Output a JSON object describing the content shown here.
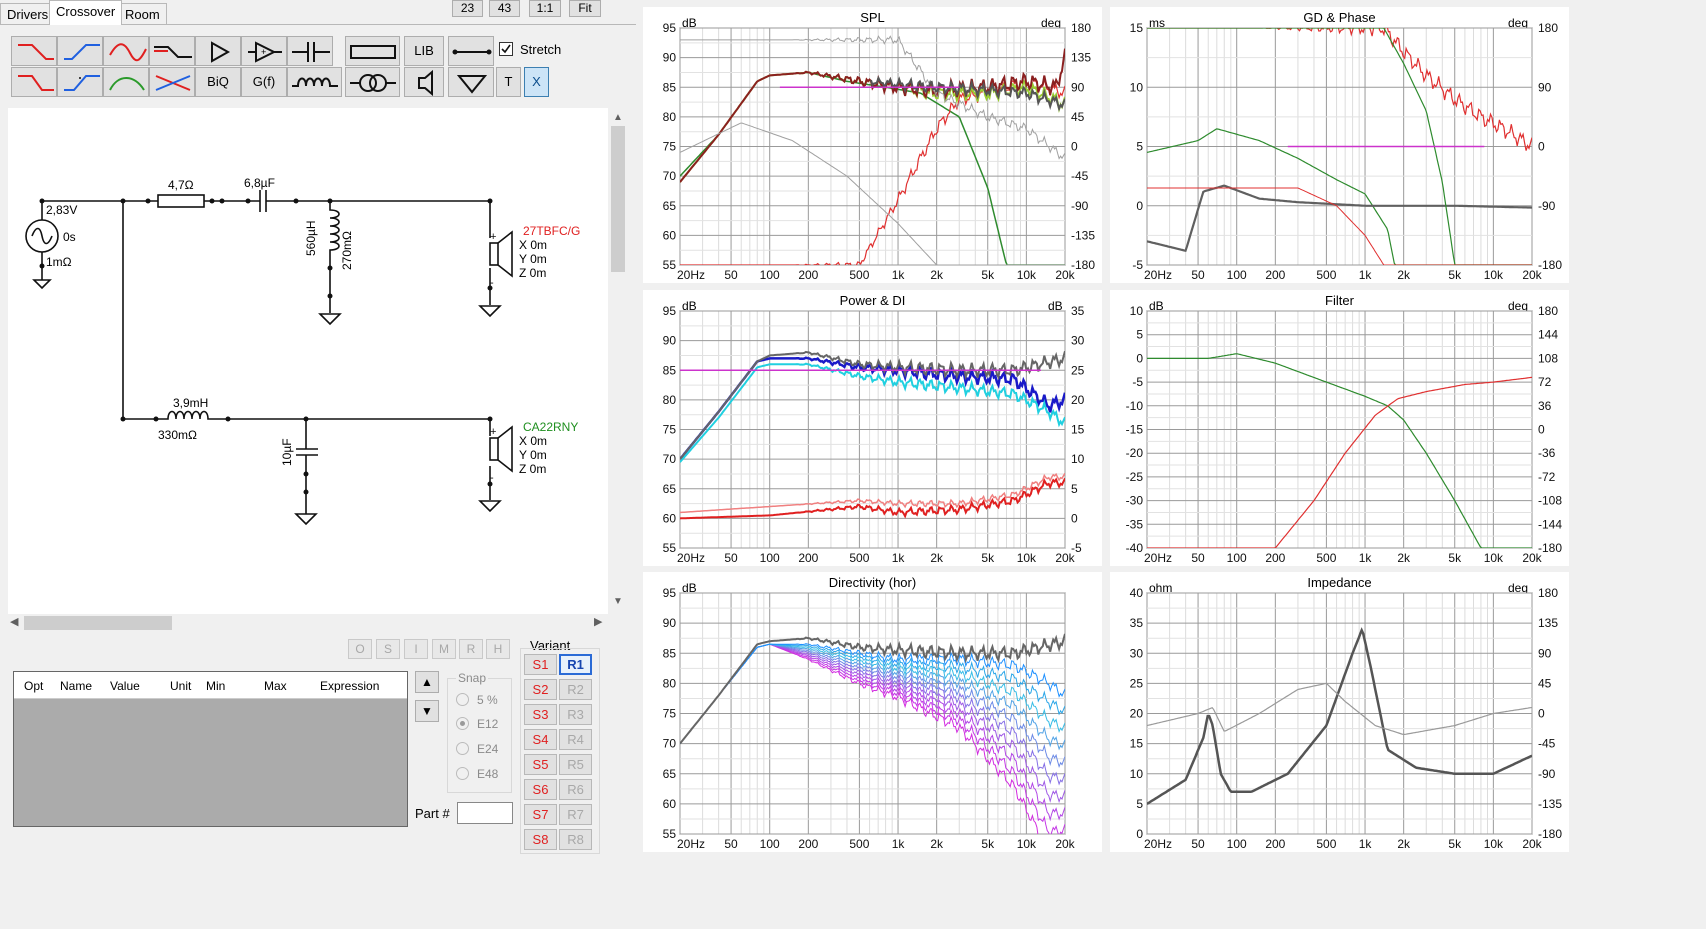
{
  "tabs": [
    "Drivers",
    "Crossover",
    "Room"
  ],
  "toolbar": {
    "b23": "23",
    "b43": "43",
    "b11": "1:1",
    "fit": "Fit"
  },
  "tools": {
    "lib": "LIB",
    "biq": "BiQ",
    "gf": "G(f)",
    "t": "T",
    "x": "X",
    "stretch": "Stretch"
  },
  "schematic": {
    "source_v": "2,83V",
    "source_t": "0s",
    "source_r": "1mΩ",
    "r1": "4,7Ω",
    "c1": "6,8µF",
    "l1": "560µH",
    "l1r": "270mΩ",
    "driver1": "27TBFC/G",
    "d1x": "X 0m",
    "d1y": "Y 0m",
    "d1z": "Z 0m",
    "l2": "3,9mH",
    "l2r": "330mΩ",
    "c2": "10µF",
    "driver2": "CA22RNY",
    "d2x": "X 0m",
    "d2y": "Y 0m",
    "d2z": "Z 0m"
  },
  "table": {
    "headers": [
      "Opt",
      "Name",
      "Value",
      "Unit",
      "Min",
      "Max",
      "Expression"
    ]
  },
  "optbtns": [
    "O",
    "S",
    "I",
    "M",
    "R",
    "H"
  ],
  "snap": {
    "label": "Snap",
    "options": [
      "5 %",
      "E12",
      "E24",
      "E48"
    ],
    "selected": "E12"
  },
  "part": {
    "label": "Part #"
  },
  "variant": {
    "label": "Variant",
    "s": [
      "S1",
      "S2",
      "S3",
      "S4",
      "S5",
      "S6",
      "S7",
      "S8"
    ],
    "r": [
      "R1",
      "R2",
      "R3",
      "R4",
      "R5",
      "R6",
      "R7",
      "R8"
    ]
  },
  "xticks": [
    "20Hz",
    "50",
    "100",
    "200",
    "500",
    "1k",
    "2k",
    "5k",
    "10k",
    "20k"
  ],
  "charts": {
    "spl": {
      "title": "SPL",
      "lunit": "dB",
      "runit": "deg",
      "left": [
        "95",
        "90",
        "85",
        "80",
        "75",
        "70",
        "65",
        "60",
        "55"
      ],
      "right": [
        "180",
        "135",
        "90",
        "45",
        "0",
        "-45",
        "-90",
        "-135",
        "-180"
      ]
    },
    "gd": {
      "title": "GD & Phase",
      "lunit": "ms",
      "runit": "deg",
      "left": [
        "15",
        "10",
        "5",
        "0",
        "-5"
      ],
      "right": [
        "180",
        "90",
        "0",
        "-90",
        "-180"
      ]
    },
    "power": {
      "title": "Power & DI",
      "lunit": "dB",
      "runit": "dB",
      "left": [
        "95",
        "90",
        "85",
        "80",
        "75",
        "70",
        "65",
        "60",
        "55"
      ],
      "right": [
        "35",
        "30",
        "25",
        "20",
        "15",
        "10",
        "5",
        "0",
        "-5"
      ]
    },
    "filter": {
      "title": "Filter",
      "lunit": "dB",
      "runit": "deg",
      "left": [
        "10",
        "5",
        "0",
        "-5",
        "-10",
        "-15",
        "-20",
        "-25",
        "-30",
        "-35",
        "-40"
      ],
      "right": [
        "180",
        "144",
        "108",
        "72",
        "36",
        "0",
        "-36",
        "-72",
        "-108",
        "-144",
        "-180"
      ]
    },
    "dir": {
      "title": "Directivity (hor)",
      "lunit": "dB",
      "runit": "",
      "left": [
        "95",
        "90",
        "85",
        "80",
        "75",
        "70",
        "65",
        "60",
        "55"
      ],
      "right": []
    },
    "imp": {
      "title": "Impedance",
      "lunit": "ohm",
      "runit": "deg",
      "left": [
        "40",
        "35",
        "30",
        "25",
        "20",
        "15",
        "10",
        "5",
        "0"
      ],
      "right": [
        "180",
        "135",
        "90",
        "45",
        "0",
        "-45",
        "-90",
        "-135",
        "-180"
      ]
    }
  }
}
